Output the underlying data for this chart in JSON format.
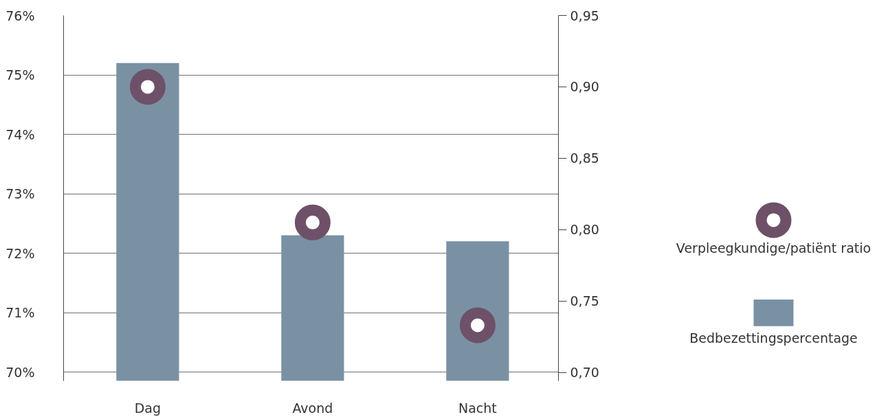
{
  "chart_data": {
    "type": "bar",
    "categories": [
      "Dag",
      "Avond",
      "Nacht"
    ],
    "series": [
      {
        "name": "Verpleegkundige/patiënt ratio",
        "type": "scatter",
        "axis": "y2",
        "color": "#6e5168",
        "values": [
          0.9,
          0.805,
          0.733
        ]
      },
      {
        "name": "Bedbezettingspercentage",
        "color": "#7a91a4",
        "values": [
          75.2,
          72.3,
          72.2
        ]
      }
    ],
    "ylim": [
      69.85,
      76
    ],
    "yticks": [
      {
        "value": 70,
        "label": "70%"
      },
      {
        "value": 71,
        "label": "71%"
      },
      {
        "value": 72,
        "label": "72%"
      },
      {
        "value": 73,
        "label": "73%"
      },
      {
        "value": 74,
        "label": "74%"
      },
      {
        "value": 75,
        "label": "75%"
      },
      {
        "value": 76,
        "label": "76%"
      }
    ],
    "y2lim": [
      0.694,
      0.95
    ],
    "y2ticks": [
      {
        "value": 0.7,
        "label": "0,70"
      },
      {
        "value": 0.75,
        "label": "0,75"
      },
      {
        "value": 0.8,
        "label": "0,80"
      },
      {
        "value": 0.85,
        "label": "0,85"
      },
      {
        "value": 0.9,
        "label": "0,90"
      },
      {
        "value": 0.95,
        "label": "0,95"
      }
    ],
    "grid": "y",
    "legend": "right",
    "marker": "circle"
  }
}
